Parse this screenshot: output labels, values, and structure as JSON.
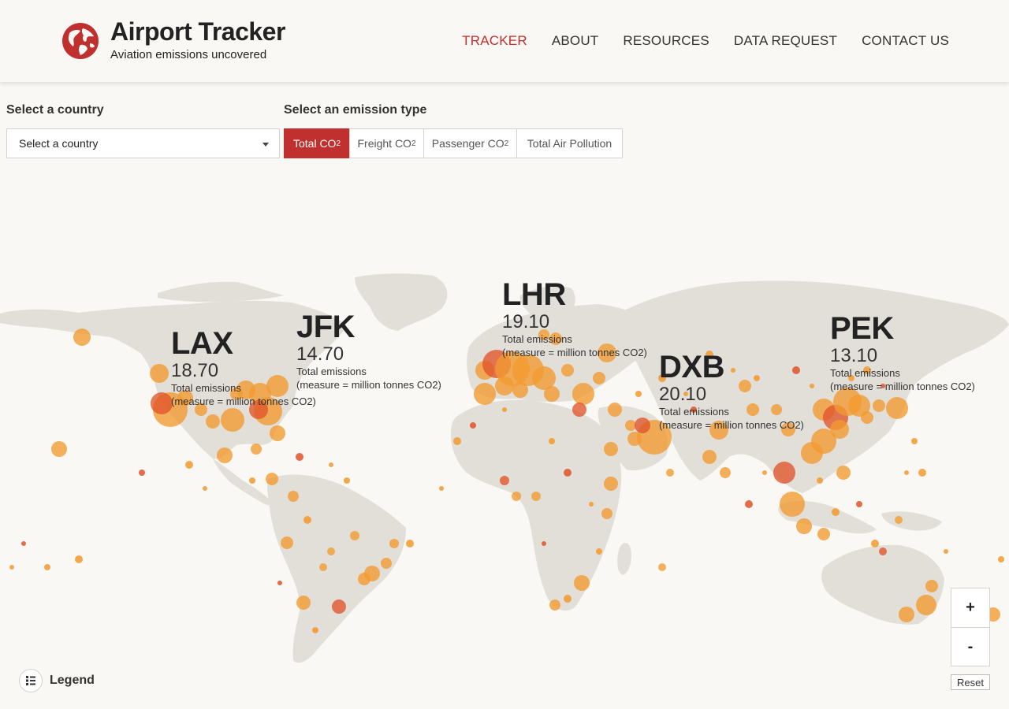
{
  "header": {
    "title": "Airport Tracker",
    "subtitle": "Aviation emissions uncovered",
    "nav": [
      "TRACKER",
      "ABOUT",
      "RESOURCES",
      "DATA REQUEST",
      "CONTACT US"
    ],
    "active_nav": "TRACKER",
    "brand_color": "#c0302e"
  },
  "filters": {
    "country_label": "Select a country",
    "country_value": "Select a country",
    "emission_label": "Select an emission type",
    "emission_types": [
      {
        "text": "Total CO",
        "sub": "2",
        "active": true
      },
      {
        "text": "Freight CO",
        "sub": "2",
        "active": false
      },
      {
        "text": "Passenger CO",
        "sub": "2",
        "active": false
      },
      {
        "text": "Total Air Pollution",
        "sub": "",
        "active": false
      }
    ]
  },
  "callouts": [
    {
      "code": "LAX",
      "value": "18.70",
      "label": "Total emissions",
      "unit": "(measure = million tonnes CO2)"
    },
    {
      "code": "JFK",
      "value": "14.70",
      "label": "Total emissions",
      "unit": "(measure = million tonnes CO2)"
    },
    {
      "code": "LHR",
      "value": "19.10",
      "label": "Total emissions",
      "unit": "(measure = million tonnes CO2)"
    },
    {
      "code": "DXB",
      "value": "20.10",
      "label": "Total emissions",
      "unit": "(measure = million tonnes CO2)"
    },
    {
      "code": "PEK",
      "value": "13.10",
      "label": "Total emissions",
      "unit": "(measure = million tonnes CO2)"
    }
  ],
  "map": {
    "land_color": "#e2ded8",
    "bubble_color": "#f29a2e",
    "bubble_color_dark": "#e0542a"
  },
  "controls": {
    "zoom_in": "+",
    "zoom_out": "-",
    "reset": "Reset",
    "legend": "Legend"
  }
}
